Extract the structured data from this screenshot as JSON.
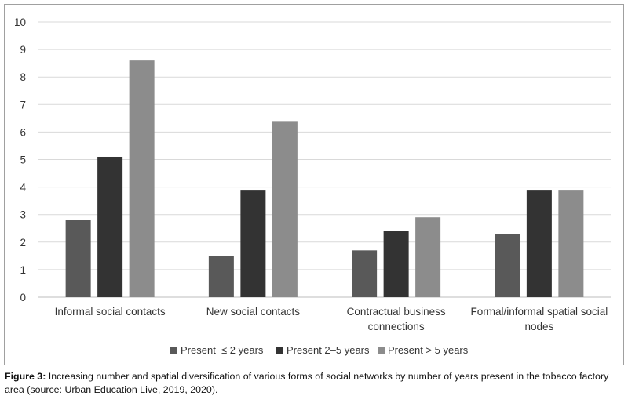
{
  "chart_data": {
    "type": "bar",
    "categories": [
      [
        "Informal social contacts"
      ],
      [
        "New social contacts"
      ],
      [
        "Contractual business",
        "connections"
      ],
      [
        "Formal/informal spatial social",
        "nodes"
      ]
    ],
    "series": [
      {
        "name": "Present  ≤ 2 years",
        "color": "#595959",
        "values": [
          2.8,
          1.5,
          1.7,
          2.3
        ]
      },
      {
        "name": "Present 2–5 years",
        "color": "#333333",
        "values": [
          5.1,
          3.9,
          2.4,
          3.9
        ]
      },
      {
        "name": "Present > 5 years",
        "color": "#8c8c8c",
        "values": [
          8.6,
          6.4,
          2.9,
          3.9
        ]
      }
    ],
    "ylim": [
      0,
      10
    ],
    "yticks": [
      "0",
      "1",
      "2",
      "3",
      "4",
      "5",
      "6",
      "7",
      "8",
      "9",
      "10"
    ],
    "grid": true,
    "legend": "bottom"
  },
  "caption": {
    "label": "Figure 3:",
    "text": " Increasing number and spatial diversification of various forms of social networks by number of years present in the tobacco factory area (source: Urban Education Live, 2019, 2020)."
  }
}
